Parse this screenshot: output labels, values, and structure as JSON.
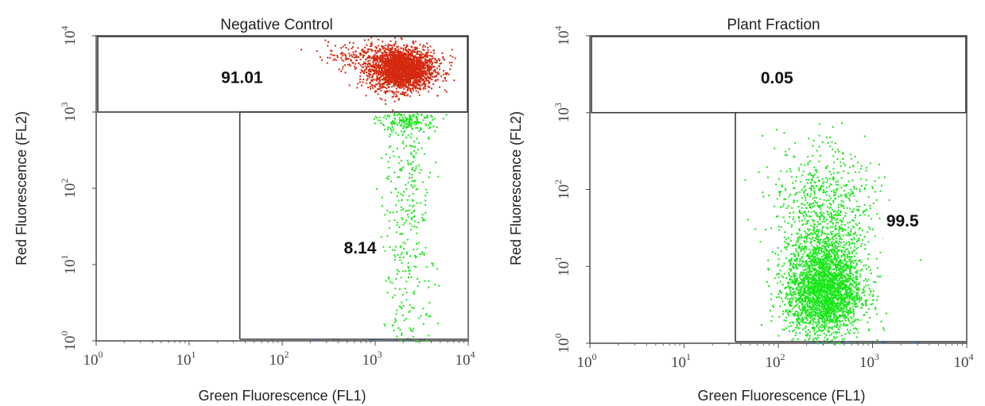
{
  "colors": {
    "gate_positive": "#d42a10",
    "gate_negative": "#19e619",
    "debris": "#3a7ad8",
    "frame": "#4a4a4a",
    "background": "#ffffff"
  },
  "chart_data": [
    {
      "type": "scatter",
      "title": "Negative Control",
      "xlabel": "Green Fluorescence  (FL1)",
      "ylabel": "Red Fluorescence  (FL2)",
      "xscale": "log",
      "yscale": "log",
      "xlim": [
        1,
        10000
      ],
      "ylim": [
        1,
        10000
      ],
      "x_ticks": [
        {
          "base": "10",
          "exp": "0"
        },
        {
          "base": "10",
          "exp": "1"
        },
        {
          "base": "10",
          "exp": "2"
        },
        {
          "base": "10",
          "exp": "3"
        },
        {
          "base": "10",
          "exp": "4"
        }
      ],
      "y_ticks": [
        {
          "base": "10",
          "exp": "0"
        },
        {
          "base": "10",
          "exp": "1"
        },
        {
          "base": "10",
          "exp": "2"
        },
        {
          "base": "10",
          "exp": "3"
        },
        {
          "base": "10",
          "exp": "4"
        }
      ],
      "gate_threshold_y": 1000,
      "gate_threshold_x": 35,
      "gates": [
        {
          "name": "upper",
          "label": "91.01",
          "color": "#d42a10",
          "xlim": [
            1,
            10000
          ],
          "ylim": [
            1000,
            10000
          ],
          "label_at": [
            22,
            2400
          ]
        },
        {
          "name": "lower-right",
          "label": "8.14",
          "color": "#19e619",
          "xlim": [
            35,
            10000
          ],
          "ylim": [
            1,
            1000
          ],
          "label_at": [
            460,
            14
          ]
        }
      ],
      "populations": [
        {
          "name": "",
          "color": "#d42a10",
          "shape": "ellipse",
          "center": [
            1900,
            3600
          ],
          "spread": [
            0.17,
            0.13
          ],
          "n": 2200,
          "ylim": [
            1000,
            10000
          ]
        },
        {
          "name": "",
          "color": "#d42a10",
          "shape": "ellipse",
          "center": [
            1200,
            5500
          ],
          "spread": [
            0.3,
            0.1
          ],
          "n": 400,
          "ylim": [
            1000,
            10000
          ]
        },
        {
          "name": "",
          "color": "#19e619",
          "shape": "column",
          "center": [
            2200,
            100
          ],
          "spread": [
            0.14,
            0.55
          ],
          "n": 330,
          "ylim": [
            1,
            1000
          ]
        },
        {
          "name": "",
          "color": "#19e619",
          "shape": "ellipse",
          "center": [
            2200,
            800
          ],
          "spread": [
            0.15,
            0.08
          ],
          "n": 180,
          "ylim": [
            1,
            1000
          ]
        }
      ]
    },
    {
      "type": "scatter",
      "title": "Plant Fraction",
      "xlabel": "Green Fluorescence  (FL1)",
      "ylabel": "Red Fluorescence  (FL2)",
      "xscale": "log",
      "yscale": "log",
      "xlim": [
        1,
        10000
      ],
      "ylim": [
        1,
        10000
      ],
      "x_ticks": [
        {
          "base": "10",
          "exp": "0"
        },
        {
          "base": "10",
          "exp": "1"
        },
        {
          "base": "10",
          "exp": "2"
        },
        {
          "base": "10",
          "exp": "3"
        },
        {
          "base": "10",
          "exp": "4"
        }
      ],
      "y_ticks": [
        {
          "base": "10",
          "exp": "0"
        },
        {
          "base": "10",
          "exp": "1"
        },
        {
          "base": "10",
          "exp": "2"
        },
        {
          "base": "10",
          "exp": "3"
        },
        {
          "base": "10",
          "exp": "4"
        }
      ],
      "gate_threshold_y": 1000,
      "gate_threshold_x": 35,
      "gates": [
        {
          "name": "upper",
          "label": "0.05",
          "color": "#d42a10",
          "xlim": [
            1,
            10000
          ],
          "ylim": [
            1000,
            10000
          ],
          "label_at": [
            65,
            2400
          ]
        },
        {
          "name": "lower-right",
          "label": "99.5",
          "color": "#19e619",
          "xlim": [
            35,
            10000
          ],
          "ylim": [
            1,
            1000
          ],
          "label_at": [
            1400,
            33
          ]
        }
      ],
      "populations": [
        {
          "name": "",
          "color": "#19e619",
          "shape": "ellipse",
          "center": [
            300,
            5
          ],
          "spread": [
            0.2,
            0.3
          ],
          "n": 2600,
          "ylim": [
            1,
            1000
          ]
        },
        {
          "name": "",
          "color": "#19e619",
          "shape": "ellipse",
          "center": [
            330,
            30
          ],
          "spread": [
            0.23,
            0.42
          ],
          "n": 650,
          "ylim": [
            1,
            1000
          ]
        },
        {
          "name": "",
          "color": "#19e619",
          "shape": "ellipse",
          "center": [
            260,
            100
          ],
          "spread": [
            0.32,
            0.45
          ],
          "n": 230,
          "ylim": [
            1,
            1000
          ]
        }
      ]
    }
  ]
}
